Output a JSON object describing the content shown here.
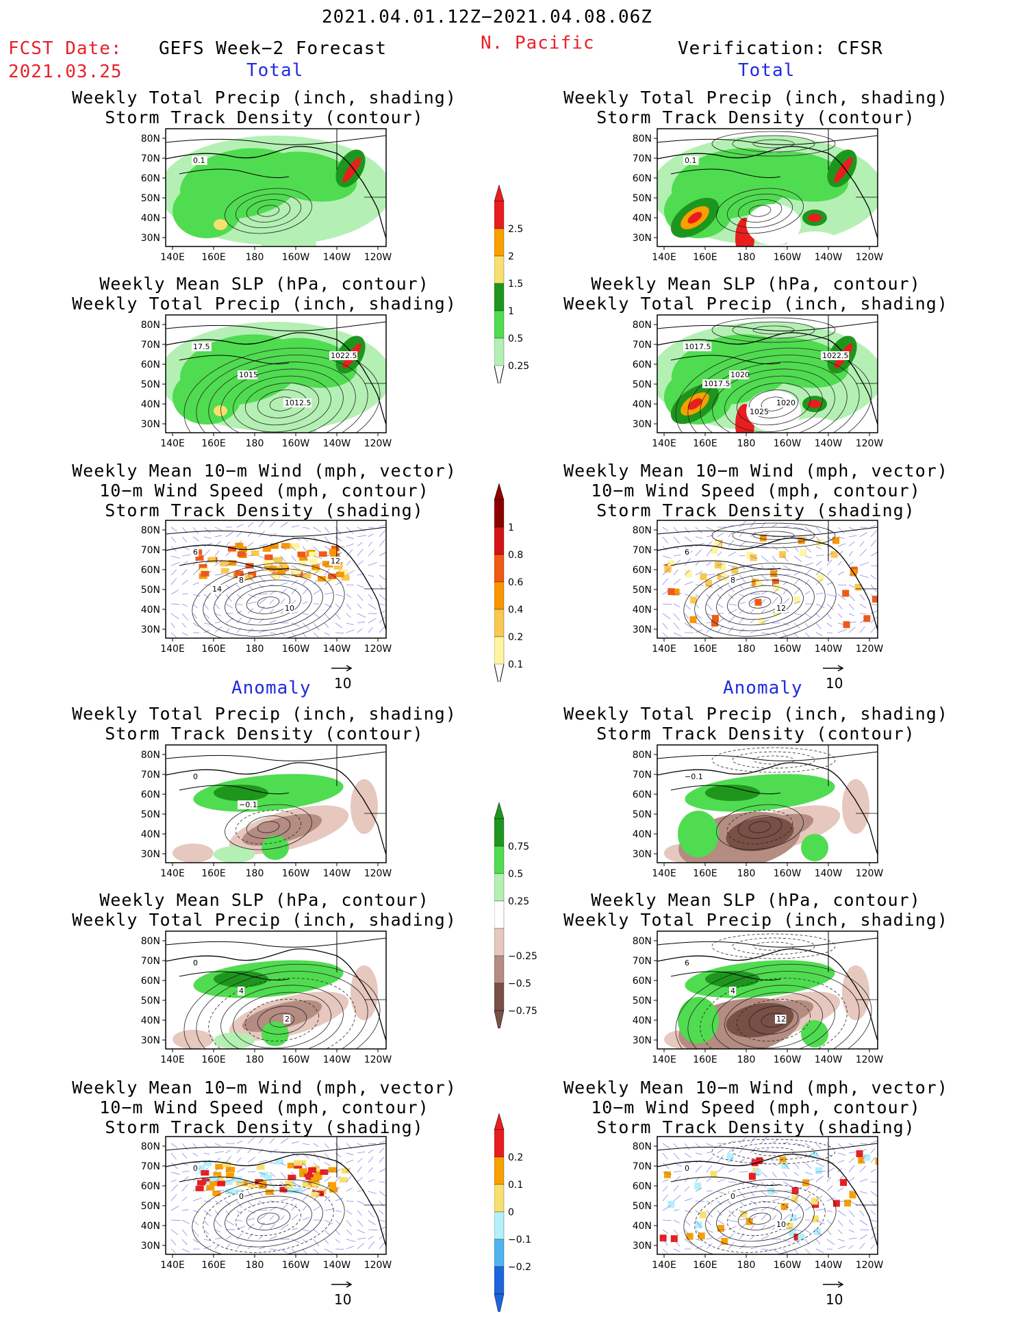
{
  "header": {
    "date_range": "2021.04.01.12Z−2021.04.08.06Z",
    "fcst_label": "FCST Date:",
    "fcst_date": "2021.03.25",
    "left_title": "GEFS Week−2 Forecast",
    "region": "N. Pacific",
    "right_title": "Verification: CFSR"
  },
  "sections": {
    "total": "Total",
    "anomaly": "Anomaly"
  },
  "panel_titles": {
    "precip_storm": [
      "Weekly Total Precip (inch, shading)",
      "Storm Track Density (contour)"
    ],
    "slp_precip": [
      "Weekly Mean SLP (hPa, contour)",
      "Weekly Total Precip (inch, shading)"
    ],
    "wind_storm": [
      "Weekly Mean 10−m Wind (mph, vector)",
      "10−m Wind Speed (mph, contour)",
      "Storm Track Density (shading)"
    ]
  },
  "map_axes": {
    "lat_labels": [
      "80N",
      "70N",
      "60N",
      "50N",
      "40N",
      "30N"
    ],
    "lon_labels": [
      "140E",
      "160E",
      "180",
      "160W",
      "140W",
      "120W"
    ]
  },
  "vector_scale": "10",
  "colorbars": {
    "total_precip": {
      "labels": [
        "2.5",
        "2",
        "1.5",
        "1",
        "0.5",
        "0.25"
      ],
      "colors": [
        "#e81e1e",
        "#f8a000",
        "#f8e070",
        "#1e961e",
        "#50dc50",
        "#b4f0b4"
      ]
    },
    "total_storm": {
      "labels": [
        "1",
        "0.8",
        "0.6",
        "0.4",
        "0.2",
        "0.1"
      ],
      "colors": [
        "#8c0000",
        "#d21414",
        "#f05a14",
        "#f89600",
        "#f8c850",
        "#fff5a0"
      ]
    },
    "anom_precip": {
      "labels": [
        "0.75",
        "0.5",
        "0.25",
        "−0.25",
        "−0.5",
        "−0.75"
      ],
      "colors": [
        "#1e961e",
        "#50dc50",
        "#b4f0b4",
        "#ffffff",
        "#e6c8be",
        "#b48c82",
        "#785046"
      ]
    },
    "anom_storm": {
      "labels": [
        "0.2",
        "0.1",
        "0",
        "−0.1",
        "−0.2"
      ],
      "colors": [
        "#e81e1e",
        "#f8a000",
        "#f8e070",
        "#b4f0f8",
        "#50b4f0",
        "#1e64dc"
      ]
    }
  },
  "contour_labels": {
    "r1_left": [
      "0.1"
    ],
    "r1_right": [
      "0.1"
    ],
    "r2_left": [
      "17.5",
      "1015",
      "1012.5",
      "1022.5"
    ],
    "r2_right": [
      "1017.5",
      "1020",
      "1020",
      "1022.5",
      "1017.5",
      "1025"
    ],
    "r3_left": [
      "6",
      "8",
      "10",
      "12",
      "14"
    ],
    "r3_right": [
      "6",
      "8",
      "12"
    ],
    "r4_left": [
      "0",
      "−0.1"
    ],
    "r4_right": [
      "−0.1"
    ],
    "r5_left": [
      "0",
      "4",
      "2"
    ],
    "r5_right": [
      "6",
      "4",
      "12"
    ],
    "r6_left": [
      "0",
      "0"
    ],
    "r6_right": [
      "0",
      "0",
      "10"
    ]
  },
  "colors": {
    "red_text": "#e8202a",
    "blue_text": "#1f2ae0"
  }
}
